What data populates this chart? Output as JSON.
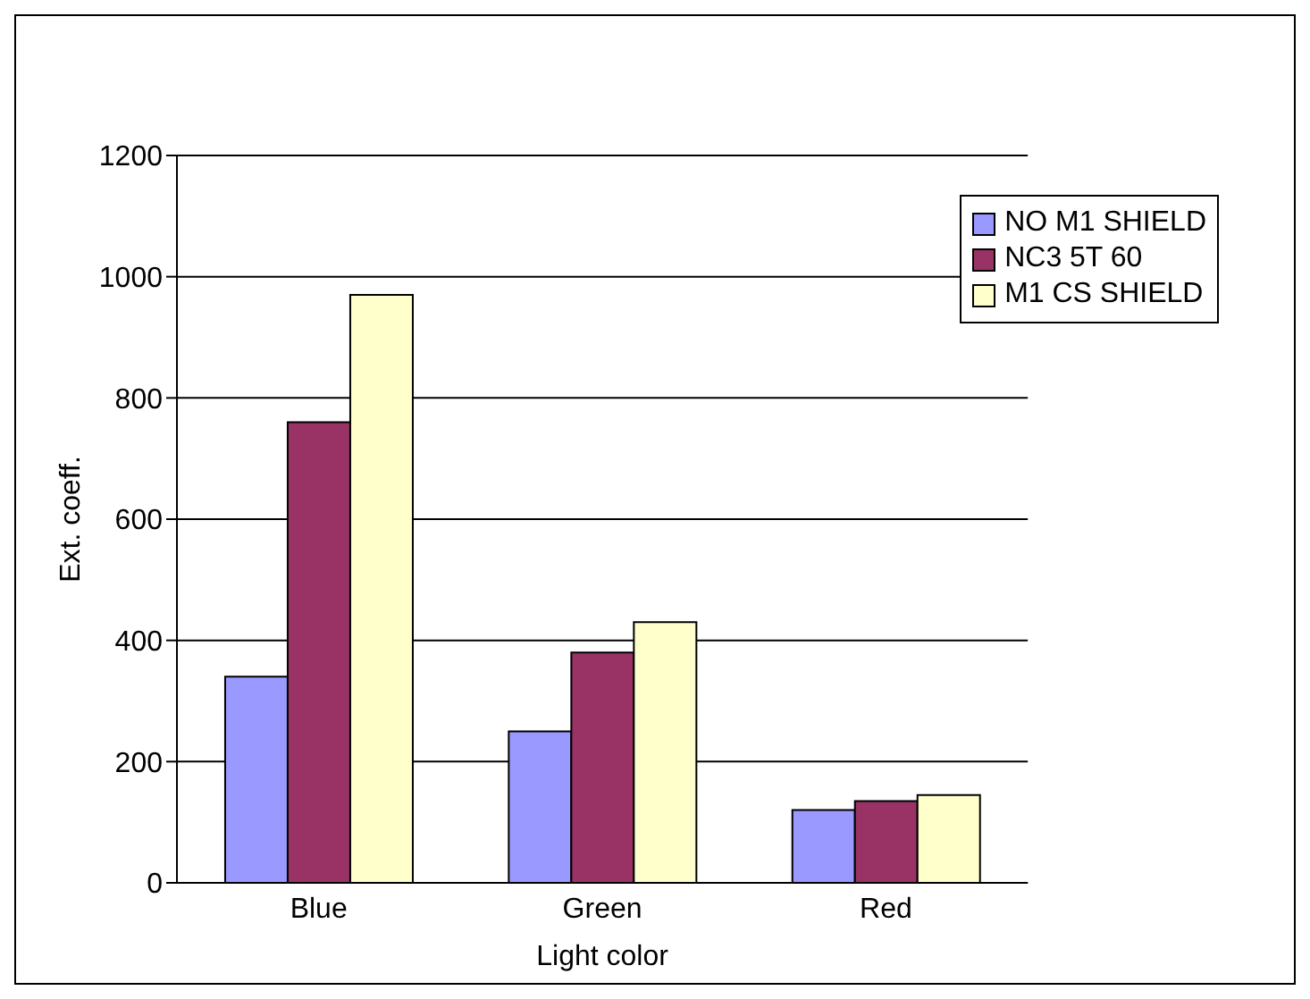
{
  "chart_data": {
    "type": "bar",
    "xlabel": "Light color",
    "ylabel": "Ext. coeff.",
    "categories": [
      "Blue",
      "Green",
      "Red"
    ],
    "series": [
      {
        "name": "NO M1 SHIELD",
        "color": "#9999ff",
        "values": [
          340,
          250,
          120
        ]
      },
      {
        "name": "NC3 5T 60",
        "color": "#993366",
        "values": [
          760,
          380,
          135
        ]
      },
      {
        "name": "M1 CS SHIELD",
        "color": "#ffffcc",
        "values": [
          970,
          430,
          145
        ]
      }
    ],
    "ylim": [
      0,
      1200
    ],
    "yticks": [
      0,
      200,
      400,
      600,
      800,
      1000,
      1200
    ],
    "grid": "y",
    "legend": "top right"
  }
}
